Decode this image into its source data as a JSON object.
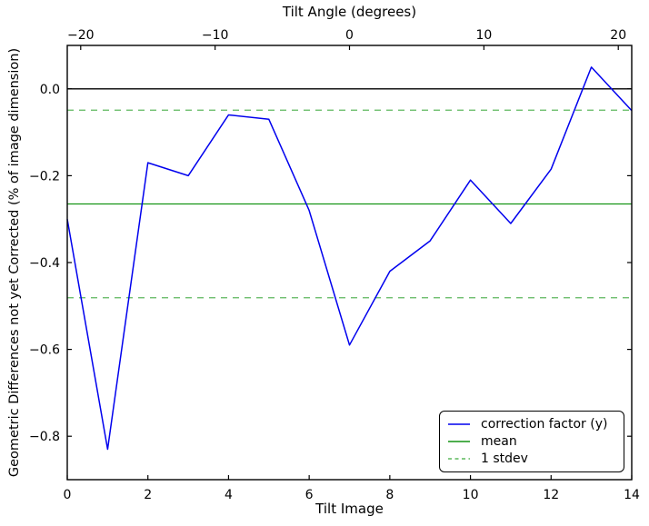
{
  "chart_data": {
    "type": "line",
    "title": "Tilt Angle (degrees)",
    "xlabel": "Tilt Image",
    "ylabel": "Geometric Differences not yet Corrected (% of image dimension)",
    "x": [
      0,
      1,
      2,
      3,
      4,
      5,
      6,
      7,
      8,
      9,
      10,
      11,
      12,
      13,
      14
    ],
    "series": [
      {
        "name": "correction factor (y)",
        "color": "#0000ee",
        "values": [
          -0.3,
          -0.83,
          -0.17,
          -0.2,
          -0.06,
          -0.07,
          -0.28,
          -0.59,
          -0.42,
          -0.35,
          -0.21,
          -0.31,
          -0.185,
          0.05,
          -0.05
        ]
      }
    ],
    "mean": -0.265,
    "stdev": 0.216,
    "zero_line": 0.0,
    "xlim": [
      0,
      14
    ],
    "ylim": [
      -0.9,
      0.1
    ],
    "x_ticks": {
      "values": [
        0,
        2,
        4,
        6,
        8,
        10,
        12,
        14
      ],
      "labels": [
        "0",
        "2",
        "4",
        "6",
        "8",
        "10",
        "12",
        "14"
      ]
    },
    "y_ticks": {
      "values": [
        0.0,
        -0.2,
        -0.4,
        -0.6,
        -0.8
      ],
      "labels": [
        "0.0",
        "−0.2",
        "−0.4",
        "−0.6",
        "−0.8"
      ]
    },
    "top_axis": {
      "label": "Tilt Angle (degrees)",
      "range": [
        -21,
        21
      ],
      "ticks": {
        "values": [
          -20,
          -10,
          0,
          10,
          20
        ],
        "labels": [
          "−20",
          "−10",
          "0",
          "10",
          "20"
        ]
      }
    },
    "legend": {
      "position": "lower right",
      "items": [
        {
          "label": "correction factor (y)",
          "color": "#0000ee",
          "style": "solid"
        },
        {
          "label": "mean",
          "color": "#149414",
          "style": "solid"
        },
        {
          "label": "1 stdev",
          "color": "#5db85d",
          "style": "dashed"
        }
      ]
    },
    "colors": {
      "mean": "#149414",
      "stdev": "#5db85d",
      "zero": "#000000",
      "frame": "#000000",
      "background": "#ffffff"
    },
    "grid": false,
    "legend_on": true
  }
}
